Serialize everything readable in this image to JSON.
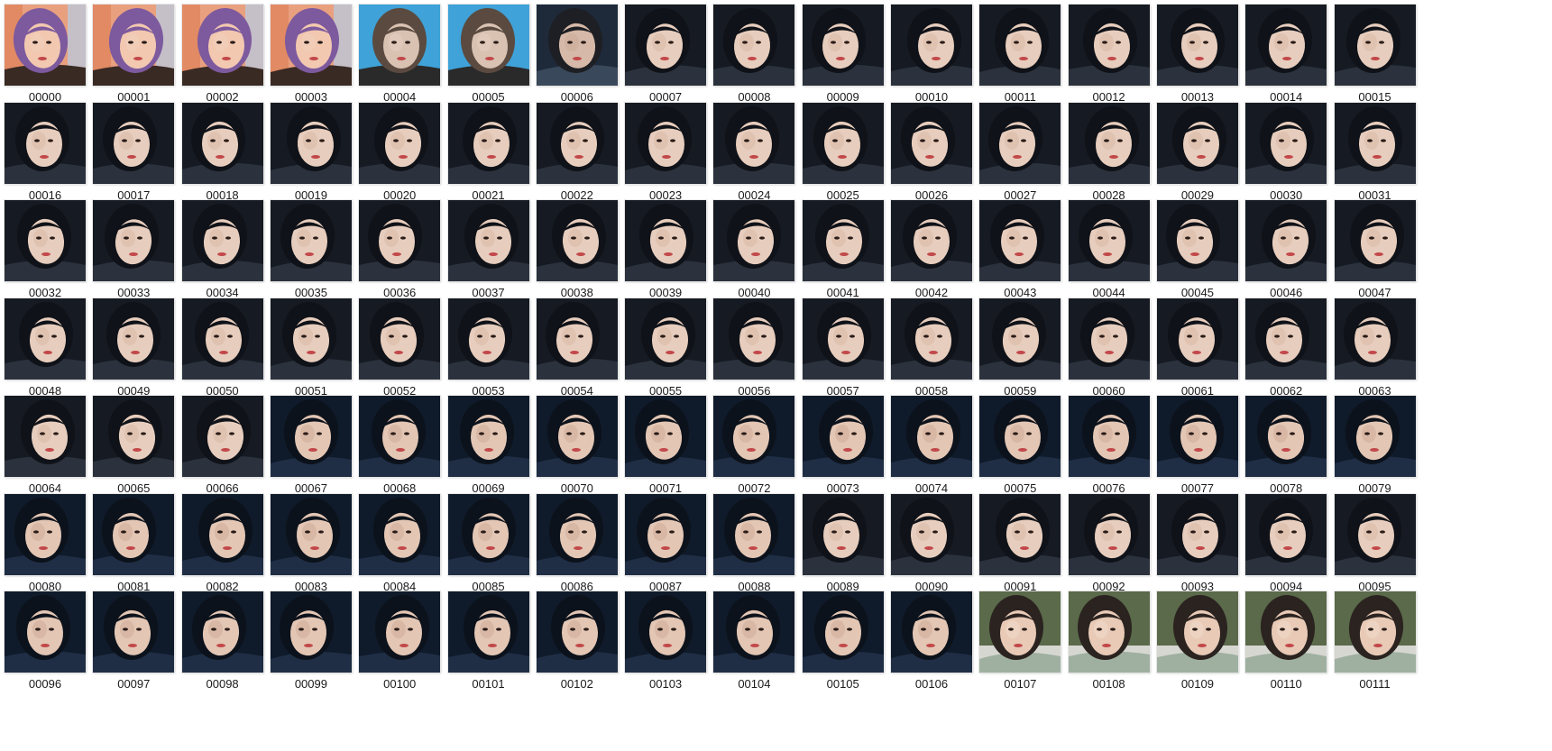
{
  "window": {
    "view": "large-icons",
    "content_type": "image-thumbnails"
  },
  "colors": {
    "background": "#ffffff",
    "label_text": "#1a1a1a"
  },
  "scene_palettes": {
    "warm": [
      "#e9a07f",
      "#f2c8b0",
      "#7d5a9e",
      "#3a2a24",
      "#f0d2c0"
    ],
    "blue": [
      "#3fa2d8",
      "#d9c2b2",
      "#5b4a40",
      "#2a2a2a",
      "#e8d0c2"
    ],
    "darkcity": [
      "#1e2a3a",
      "#d6b9a8",
      "#1d1f24",
      "#39485a",
      "#c9aa96"
    ],
    "office": [
      "#161a22",
      "#e7cdbd",
      "#0f1218",
      "#2b323d",
      "#d8b7a3"
    ],
    "navy": [
      "#0f1a2a",
      "#e3c6b4",
      "#0c121b",
      "#1f2e45",
      "#cda896"
    ],
    "outdoor": [
      "#5a6a4a",
      "#e8cab6",
      "#2b2320",
      "#9fb0a0",
      "#f2dccd"
    ]
  },
  "files": [
    {
      "name": "00000",
      "scene": "warm"
    },
    {
      "name": "00001",
      "scene": "warm"
    },
    {
      "name": "00002",
      "scene": "warm"
    },
    {
      "name": "00003",
      "scene": "warm"
    },
    {
      "name": "00004",
      "scene": "blue"
    },
    {
      "name": "00005",
      "scene": "blue"
    },
    {
      "name": "00006",
      "scene": "darkcity"
    },
    {
      "name": "00007",
      "scene": "office"
    },
    {
      "name": "00008",
      "scene": "office"
    },
    {
      "name": "00009",
      "scene": "office"
    },
    {
      "name": "00010",
      "scene": "office"
    },
    {
      "name": "00011",
      "scene": "office"
    },
    {
      "name": "00012",
      "scene": "office"
    },
    {
      "name": "00013",
      "scene": "office"
    },
    {
      "name": "00014",
      "scene": "office"
    },
    {
      "name": "00015",
      "scene": "office"
    },
    {
      "name": "00016",
      "scene": "office"
    },
    {
      "name": "00017",
      "scene": "office"
    },
    {
      "name": "00018",
      "scene": "office"
    },
    {
      "name": "00019",
      "scene": "office"
    },
    {
      "name": "00020",
      "scene": "office"
    },
    {
      "name": "00021",
      "scene": "office"
    },
    {
      "name": "00022",
      "scene": "office"
    },
    {
      "name": "00023",
      "scene": "office"
    },
    {
      "name": "00024",
      "scene": "office"
    },
    {
      "name": "00025",
      "scene": "office"
    },
    {
      "name": "00026",
      "scene": "office"
    },
    {
      "name": "00027",
      "scene": "office"
    },
    {
      "name": "00028",
      "scene": "office"
    },
    {
      "name": "00029",
      "scene": "office"
    },
    {
      "name": "00030",
      "scene": "office"
    },
    {
      "name": "00031",
      "scene": "office"
    },
    {
      "name": "00032",
      "scene": "office"
    },
    {
      "name": "00033",
      "scene": "office"
    },
    {
      "name": "00034",
      "scene": "office"
    },
    {
      "name": "00035",
      "scene": "office"
    },
    {
      "name": "00036",
      "scene": "office"
    },
    {
      "name": "00037",
      "scene": "office"
    },
    {
      "name": "00038",
      "scene": "office"
    },
    {
      "name": "00039",
      "scene": "office"
    },
    {
      "name": "00040",
      "scene": "office"
    },
    {
      "name": "00041",
      "scene": "office"
    },
    {
      "name": "00042",
      "scene": "office"
    },
    {
      "name": "00043",
      "scene": "office"
    },
    {
      "name": "00044",
      "scene": "office"
    },
    {
      "name": "00045",
      "scene": "office"
    },
    {
      "name": "00046",
      "scene": "office"
    },
    {
      "name": "00047",
      "scene": "office"
    },
    {
      "name": "00048",
      "scene": "office"
    },
    {
      "name": "00049",
      "scene": "office"
    },
    {
      "name": "00050",
      "scene": "office"
    },
    {
      "name": "00051",
      "scene": "office"
    },
    {
      "name": "00052",
      "scene": "office"
    },
    {
      "name": "00053",
      "scene": "office"
    },
    {
      "name": "00054",
      "scene": "office"
    },
    {
      "name": "00055",
      "scene": "office"
    },
    {
      "name": "00056",
      "scene": "office"
    },
    {
      "name": "00057",
      "scene": "office"
    },
    {
      "name": "00058",
      "scene": "office"
    },
    {
      "name": "00059",
      "scene": "office"
    },
    {
      "name": "00060",
      "scene": "office"
    },
    {
      "name": "00061",
      "scene": "office"
    },
    {
      "name": "00062",
      "scene": "office"
    },
    {
      "name": "00063",
      "scene": "office"
    },
    {
      "name": "00064",
      "scene": "office"
    },
    {
      "name": "00065",
      "scene": "office"
    },
    {
      "name": "00066",
      "scene": "office"
    },
    {
      "name": "00067",
      "scene": "navy"
    },
    {
      "name": "00068",
      "scene": "navy"
    },
    {
      "name": "00069",
      "scene": "navy"
    },
    {
      "name": "00070",
      "scene": "navy"
    },
    {
      "name": "00071",
      "scene": "navy"
    },
    {
      "name": "00072",
      "scene": "navy"
    },
    {
      "name": "00073",
      "scene": "navy"
    },
    {
      "name": "00074",
      "scene": "navy"
    },
    {
      "name": "00075",
      "scene": "navy"
    },
    {
      "name": "00076",
      "scene": "navy"
    },
    {
      "name": "00077",
      "scene": "navy"
    },
    {
      "name": "00078",
      "scene": "navy"
    },
    {
      "name": "00079",
      "scene": "navy"
    },
    {
      "name": "00080",
      "scene": "navy"
    },
    {
      "name": "00081",
      "scene": "navy"
    },
    {
      "name": "00082",
      "scene": "navy"
    },
    {
      "name": "00083",
      "scene": "navy"
    },
    {
      "name": "00084",
      "scene": "navy"
    },
    {
      "name": "00085",
      "scene": "navy"
    },
    {
      "name": "00086",
      "scene": "navy"
    },
    {
      "name": "00087",
      "scene": "navy"
    },
    {
      "name": "00088",
      "scene": "navy"
    },
    {
      "name": "00089",
      "scene": "office"
    },
    {
      "name": "00090",
      "scene": "office"
    },
    {
      "name": "00091",
      "scene": "office"
    },
    {
      "name": "00092",
      "scene": "office"
    },
    {
      "name": "00093",
      "scene": "office"
    },
    {
      "name": "00094",
      "scene": "office"
    },
    {
      "name": "00095",
      "scene": "office"
    },
    {
      "name": "00096",
      "scene": "navy"
    },
    {
      "name": "00097",
      "scene": "navy"
    },
    {
      "name": "00098",
      "scene": "navy"
    },
    {
      "name": "00099",
      "scene": "navy"
    },
    {
      "name": "00100",
      "scene": "navy"
    },
    {
      "name": "00101",
      "scene": "navy"
    },
    {
      "name": "00102",
      "scene": "navy"
    },
    {
      "name": "00103",
      "scene": "navy"
    },
    {
      "name": "00104",
      "scene": "navy"
    },
    {
      "name": "00105",
      "scene": "navy"
    },
    {
      "name": "00106",
      "scene": "navy"
    },
    {
      "name": "00107",
      "scene": "outdoor"
    },
    {
      "name": "00108",
      "scene": "outdoor"
    },
    {
      "name": "00109",
      "scene": "outdoor"
    },
    {
      "name": "00110",
      "scene": "outdoor"
    },
    {
      "name": "00111",
      "scene": "outdoor"
    }
  ]
}
